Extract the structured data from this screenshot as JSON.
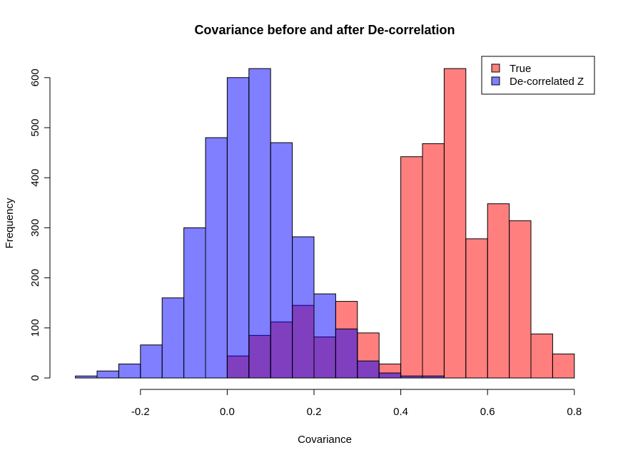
{
  "chart_data": {
    "type": "bar",
    "subtype": "overlaid-histogram",
    "title": "Covariance before and after De-correlation",
    "xlabel": "Covariance",
    "ylabel": "Frequency",
    "xlim": [
      -0.35,
      0.8
    ],
    "ylim": [
      0,
      620
    ],
    "x_ticks": [
      "-0.2",
      "0.0",
      "0.2",
      "0.4",
      "0.6",
      "0.8"
    ],
    "y_ticks": [
      "0",
      "100",
      "200",
      "300",
      "400",
      "500",
      "600"
    ],
    "grid": false,
    "legend_position": "top-right",
    "series": [
      {
        "name": "True",
        "color": "#ff8080",
        "bins": [
          {
            "x0": 0.0,
            "x1": 0.05,
            "count": 44
          },
          {
            "x0": 0.05,
            "x1": 0.1,
            "count": 85
          },
          {
            "x0": 0.1,
            "x1": 0.15,
            "count": 112
          },
          {
            "x0": 0.15,
            "x1": 0.2,
            "count": 145
          },
          {
            "x0": 0.2,
            "x1": 0.25,
            "count": 82
          },
          {
            "x0": 0.25,
            "x1": 0.3,
            "count": 153
          },
          {
            "x0": 0.3,
            "x1": 0.35,
            "count": 90
          },
          {
            "x0": 0.35,
            "x1": 0.4,
            "count": 28
          },
          {
            "x0": 0.4,
            "x1": 0.45,
            "count": 442
          },
          {
            "x0": 0.45,
            "x1": 0.5,
            "count": 468
          },
          {
            "x0": 0.5,
            "x1": 0.55,
            "count": 618
          },
          {
            "x0": 0.55,
            "x1": 0.6,
            "count": 278
          },
          {
            "x0": 0.6,
            "x1": 0.65,
            "count": 348
          },
          {
            "x0": 0.65,
            "x1": 0.7,
            "count": 314
          },
          {
            "x0": 0.7,
            "x1": 0.75,
            "count": 88
          },
          {
            "x0": 0.75,
            "x1": 0.8,
            "count": 48
          }
        ]
      },
      {
        "name": "De-correlated Z",
        "color": "#8080ff",
        "bins": [
          {
            "x0": -0.35,
            "x1": -0.3,
            "count": 4
          },
          {
            "x0": -0.3,
            "x1": -0.25,
            "count": 14
          },
          {
            "x0": -0.25,
            "x1": -0.2,
            "count": 28
          },
          {
            "x0": -0.2,
            "x1": -0.15,
            "count": 66
          },
          {
            "x0": -0.15,
            "x1": -0.1,
            "count": 160
          },
          {
            "x0": -0.1,
            "x1": -0.05,
            "count": 300
          },
          {
            "x0": -0.05,
            "x1": 0.0,
            "count": 480
          },
          {
            "x0": 0.0,
            "x1": 0.05,
            "count": 600
          },
          {
            "x0": 0.05,
            "x1": 0.1,
            "count": 618
          },
          {
            "x0": 0.1,
            "x1": 0.15,
            "count": 470
          },
          {
            "x0": 0.15,
            "x1": 0.2,
            "count": 282
          },
          {
            "x0": 0.2,
            "x1": 0.25,
            "count": 168
          },
          {
            "x0": 0.25,
            "x1": 0.3,
            "count": 98
          },
          {
            "x0": 0.3,
            "x1": 0.35,
            "count": 34
          },
          {
            "x0": 0.35,
            "x1": 0.4,
            "count": 10
          },
          {
            "x0": 0.4,
            "x1": 0.45,
            "count": 4
          },
          {
            "x0": 0.45,
            "x1": 0.5,
            "count": 4
          }
        ]
      }
    ]
  }
}
